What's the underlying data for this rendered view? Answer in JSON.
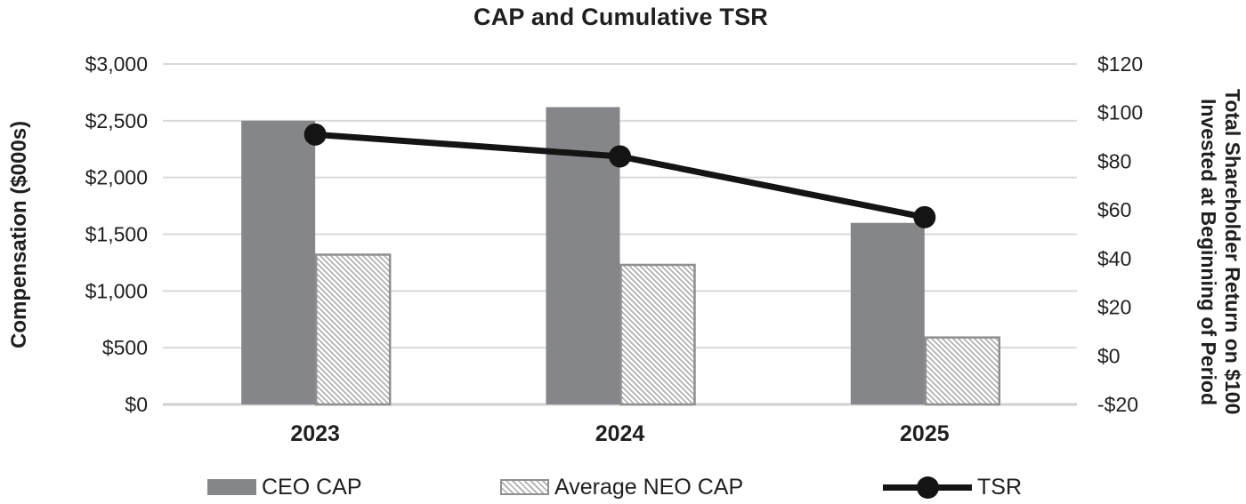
{
  "chart_data": {
    "type": "combo-bar-line",
    "title": "CAP and Cumulative TSR",
    "categories": [
      "2023",
      "2024",
      "2025"
    ],
    "series": [
      {
        "name": "CEO CAP",
        "type": "bar",
        "axis": "left",
        "style": "solid-gray",
        "values": [
          2500,
          2620,
          1600
        ]
      },
      {
        "name": "Average NEO CAP",
        "type": "bar",
        "axis": "left",
        "style": "diagonal-hatch",
        "values": [
          1320,
          1230,
          590
        ]
      },
      {
        "name": "TSR",
        "type": "line",
        "axis": "right",
        "style": "black-line-circle-markers",
        "values": [
          91,
          82,
          57
        ]
      }
    ],
    "left_axis": {
      "title": "Compensation ($000s)",
      "min": 0,
      "max": 3000,
      "step": 500,
      "ticks": [
        {
          "label": "$0",
          "value": 0
        },
        {
          "label": "$500",
          "value": 500
        },
        {
          "label": "$1,000",
          "value": 1000
        },
        {
          "label": "$1,500",
          "value": 1500
        },
        {
          "label": "$2,000",
          "value": 2000
        },
        {
          "label": "$2,500",
          "value": 2500
        },
        {
          "label": "$3,000",
          "value": 3000
        }
      ]
    },
    "right_axis": {
      "title_line1": "Total Shareholder Return on $100",
      "title_line2": "Invested at Beginning of Period",
      "min": -20,
      "max": 120,
      "step": 20,
      "ticks": [
        {
          "label": "-$20",
          "value": -20
        },
        {
          "label": "$0",
          "value": 0
        },
        {
          "label": "$20",
          "value": 20
        },
        {
          "label": "$40",
          "value": 40
        },
        {
          "label": "$60",
          "value": 60
        },
        {
          "label": "$80",
          "value": 80
        },
        {
          "label": "$100",
          "value": 100
        },
        {
          "label": "$120",
          "value": 120
        }
      ]
    },
    "grid": true,
    "legend_position": "bottom",
    "colors": {
      "bar_solid": "#85868a",
      "hatch_line": "#ababab",
      "hatch_border": "#8f8f8f",
      "line": "#141414",
      "gridline": "#d9d9d9",
      "baseline": "#cfcfcf",
      "text": "#1f1f1f"
    }
  }
}
